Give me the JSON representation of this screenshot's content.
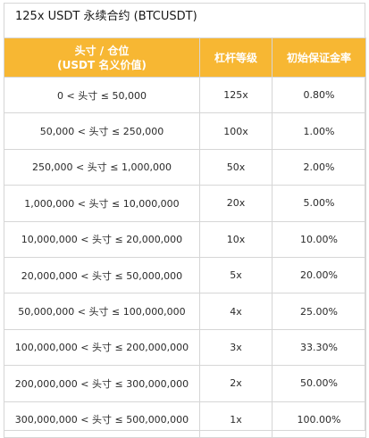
{
  "title": "125x USDT 永续合约 (BTCUSDT)",
  "header": {
    "position_line1": "头寸 / 仓位",
    "position_line2": "(USDT 名义价值)",
    "leverage": "杠杆等级",
    "margin": "初始保证金率"
  },
  "colors": {
    "header_bg": "#f7b733",
    "header_text": "#ffffff",
    "border": "#d6d6d6"
  },
  "rows": [
    {
      "position": "0 < 头寸 ≤ 50,000",
      "leverage": "125x",
      "margin": "0.80%"
    },
    {
      "position": "50,000 < 头寸 ≤ 250,000",
      "leverage": "100x",
      "margin": "1.00%"
    },
    {
      "position": "250,000 < 头寸 ≤ 1,000,000",
      "leverage": "50x",
      "margin": "2.00%"
    },
    {
      "position": "1,000,000 < 头寸 ≤ 10,000,000",
      "leverage": "20x",
      "margin": "5.00%"
    },
    {
      "position": "10,000,000 < 头寸 ≤ 20,000,000",
      "leverage": "10x",
      "margin": "10.00%"
    },
    {
      "position": "20,000,000 < 头寸 ≤ 50,000,000",
      "leverage": "5x",
      "margin": "20.00%"
    },
    {
      "position": "50,000,000 < 头寸 ≤ 100,000,000",
      "leverage": "4x",
      "margin": "25.00%"
    },
    {
      "position": "100,000,000 < 头寸 ≤ 200,000,000",
      "leverage": "3x",
      "margin": "33.30%"
    },
    {
      "position": "200,000,000 < 头寸 ≤ 300,000,000",
      "leverage": "2x",
      "margin": "50.00%"
    },
    {
      "position": "300,000,000 < 头寸 ≤ 500,000,000",
      "leverage": "1x",
      "margin": "100.00%"
    }
  ]
}
